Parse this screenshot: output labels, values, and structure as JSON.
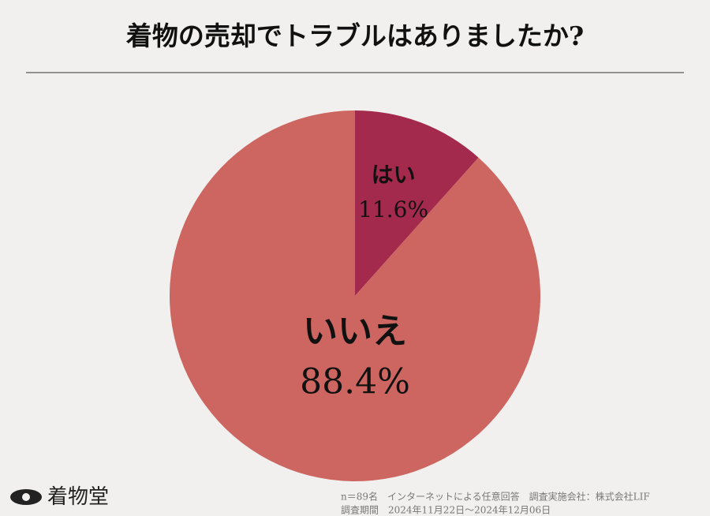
{
  "chart_data": {
    "type": "pie",
    "title": "着物の売却でトラブルはありましたか?",
    "categories": [
      "はい",
      "いいえ"
    ],
    "values": [
      11.6,
      88.4
    ],
    "value_labels": [
      "11.6%",
      "88.4%"
    ],
    "colors": [
      "#a3294d",
      "#cd6660"
    ],
    "annotations": [
      "n＝89名　インターネットによる任意回答　調査実施会社：株式会社LIF",
      "調査期間　2024年11月22日～2024年12月06日"
    ]
  },
  "brand": "着物堂"
}
